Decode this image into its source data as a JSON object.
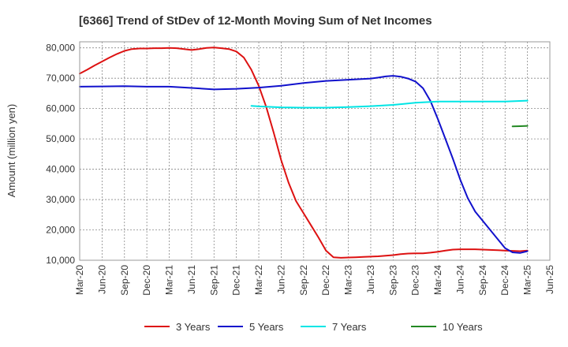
{
  "chart_data": {
    "type": "line",
    "title": "[6366]  Trend of StDev of 12-Month Moving Sum of Net Incomes",
    "xlabel": "",
    "ylabel": "Amount (million yen)",
    "ylim": [
      10000,
      82000
    ],
    "yticks": [
      10000,
      20000,
      30000,
      40000,
      50000,
      60000,
      70000,
      80000
    ],
    "ytick_labels": [
      "10,000",
      "20,000",
      "30,000",
      "40,000",
      "50,000",
      "60,000",
      "70,000",
      "80,000"
    ],
    "x_tick_labels": [
      "Mar-20",
      "Jun-20",
      "Sep-20",
      "Dec-20",
      "Mar-21",
      "Jun-21",
      "Sep-21",
      "Dec-21",
      "Mar-22",
      "Jun-22",
      "Sep-22",
      "Dec-22",
      "Mar-23",
      "Jun-23",
      "Sep-23",
      "Dec-23",
      "Mar-24",
      "Jun-24",
      "Sep-24",
      "Dec-24",
      "Mar-25",
      "Jun-25"
    ],
    "grid": true,
    "legend_position": "bottom",
    "series": [
      {
        "name": "3 Years",
        "color": "#dd1111",
        "x": [
          "2020-03",
          "2020-04",
          "2020-05",
          "2020-06",
          "2020-07",
          "2020-08",
          "2020-09",
          "2020-10",
          "2020-11",
          "2020-12",
          "2021-01",
          "2021-02",
          "2021-03",
          "2021-04",
          "2021-05",
          "2021-06",
          "2021-07",
          "2021-08",
          "2021-09",
          "2021-10",
          "2021-11",
          "2021-12",
          "2022-01",
          "2022-02",
          "2022-03",
          "2022-04",
          "2022-05",
          "2022-06",
          "2022-07",
          "2022-08",
          "2022-09",
          "2022-10",
          "2022-11",
          "2022-12",
          "2023-01",
          "2023-02",
          "2023-03",
          "2023-04",
          "2023-05",
          "2023-06",
          "2023-07",
          "2023-08",
          "2023-09",
          "2023-10",
          "2023-11",
          "2023-12",
          "2024-01",
          "2024-02",
          "2024-03",
          "2024-04",
          "2024-05",
          "2024-06",
          "2024-07",
          "2024-08",
          "2024-09",
          "2024-10",
          "2024-11",
          "2024-12",
          "2025-01",
          "2025-02",
          "2025-03"
        ],
        "values": [
          71500,
          72800,
          74200,
          75500,
          76800,
          78000,
          79000,
          79600,
          79800,
          79800,
          79900,
          79900,
          80000,
          79900,
          79600,
          79300,
          79600,
          80000,
          80100,
          79900,
          79600,
          78800,
          76800,
          72800,
          67500,
          60500,
          52000,
          43000,
          35500,
          29500,
          25500,
          21500,
          17500,
          13200,
          11000,
          10800,
          10900,
          11000,
          11100,
          11200,
          11300,
          11500,
          11700,
          12000,
          12200,
          12300,
          12300,
          12500,
          12800,
          13200,
          13500,
          13600,
          13600,
          13600,
          13500,
          13400,
          13300,
          13200,
          13100,
          13000,
          13200
        ]
      },
      {
        "name": "5 Years",
        "color": "#1111cc",
        "x": [
          "2020-03",
          "2020-06",
          "2020-09",
          "2020-12",
          "2021-03",
          "2021-06",
          "2021-09",
          "2021-12",
          "2022-03",
          "2022-06",
          "2022-09",
          "2022-12",
          "2023-03",
          "2023-06",
          "2023-07",
          "2023-08",
          "2023-09",
          "2023-10",
          "2023-11",
          "2023-12",
          "2024-01",
          "2024-02",
          "2024-03",
          "2024-04",
          "2024-05",
          "2024-06",
          "2024-07",
          "2024-08",
          "2024-09",
          "2024-10",
          "2024-11",
          "2024-12",
          "2025-01",
          "2025-02",
          "2025-03"
        ],
        "values": [
          67200,
          67300,
          67400,
          67200,
          67200,
          66800,
          66300,
          66500,
          66900,
          67500,
          68400,
          69100,
          69500,
          69900,
          70200,
          70600,
          70800,
          70500,
          69900,
          68900,
          66700,
          62500,
          56500,
          50000,
          43500,
          36500,
          30500,
          26000,
          23000,
          20000,
          17000,
          14000,
          12600,
          12400,
          13000
        ]
      },
      {
        "name": "7 Years",
        "color": "#00e5e5",
        "x": [
          "2022-02",
          "2022-03",
          "2022-06",
          "2022-09",
          "2022-12",
          "2023-03",
          "2023-06",
          "2023-09",
          "2023-12",
          "2024-03",
          "2024-06",
          "2024-09",
          "2024-12",
          "2025-03"
        ],
        "values": [
          60900,
          60700,
          60400,
          60300,
          60300,
          60500,
          60800,
          61200,
          61900,
          62300,
          62300,
          62300,
          62300,
          62600
        ]
      },
      {
        "name": "10 Years",
        "color": "#228822",
        "x": [
          "2025-01",
          "2025-02",
          "2025-03"
        ],
        "values": [
          54100,
          54200,
          54300
        ]
      }
    ]
  }
}
